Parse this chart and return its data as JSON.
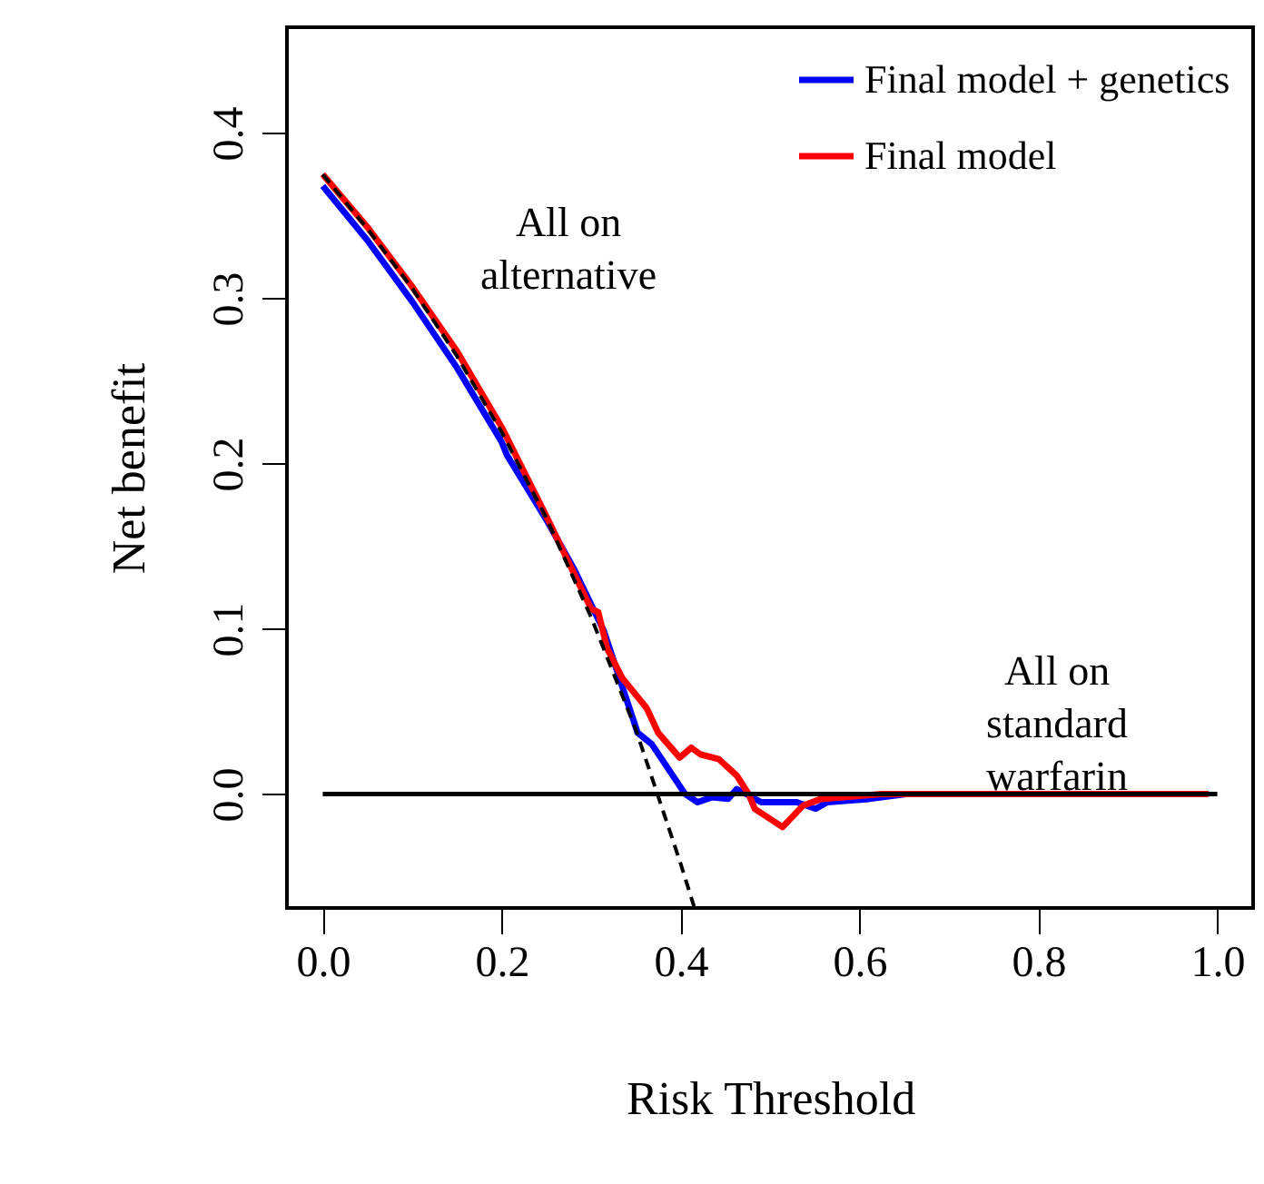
{
  "chart_data": {
    "type": "line",
    "xlabel": "Risk Threshold",
    "ylabel": "Net benefit",
    "xlim": [
      -0.04,
      1.04
    ],
    "ylim": [
      -0.069,
      0.464
    ],
    "xticks": [
      {
        "value": 0,
        "label": "0.0"
      },
      {
        "value": 0.2,
        "label": "0.2"
      },
      {
        "value": 0.4,
        "label": "0.4"
      },
      {
        "value": 0.6,
        "label": "0.6"
      },
      {
        "value": 0.8,
        "label": "0.8"
      },
      {
        "value": 1,
        "label": "1.0"
      }
    ],
    "yticks": [
      {
        "value": 0,
        "label": "0.0"
      },
      {
        "value": 0.1,
        "label": "0.1"
      },
      {
        "value": 0.2,
        "label": "0.2"
      },
      {
        "value": 0.3,
        "label": "0.3"
      },
      {
        "value": 0.4,
        "label": "0.4"
      }
    ],
    "grid": false,
    "legend": "top right",
    "series": [
      {
        "name": "Final model + genetics",
        "color": "#0000ff",
        "line_style": "solid",
        "x": [
          0,
          0.05,
          0.1,
          0.15,
          0.2,
          0.206,
          0.25,
          0.281,
          0.314,
          0.352,
          0.368,
          0.405,
          0.419,
          0.435,
          0.453,
          0.463,
          0.49,
          0.53,
          0.551,
          0.564,
          0.611,
          0.652,
          0.99
        ],
        "values": [
          0.368,
          0.335,
          0.298,
          0.258,
          0.213,
          0.205,
          0.166,
          0.136,
          0.099,
          0.037,
          0.03,
          0,
          -0.005,
          -0.002,
          -0.003,
          0.003,
          -0.005,
          -0.005,
          -0.009,
          -0.005,
          -0.003,
          0,
          0
        ]
      },
      {
        "name": "Final model",
        "color": "#ff0000",
        "line_style": "solid",
        "x": [
          0,
          0.05,
          0.1,
          0.15,
          0.2,
          0.25,
          0.3,
          0.308,
          0.318,
          0.335,
          0.362,
          0.375,
          0.399,
          0.412,
          0.422,
          0.443,
          0.463,
          0.476,
          0.483,
          0.514,
          0.537,
          0.557,
          0.625,
          0.99
        ],
        "values": [
          0.375,
          0.343,
          0.307,
          0.268,
          0.222,
          0.168,
          0.112,
          0.11,
          0.088,
          0.07,
          0.052,
          0.037,
          0.022,
          0.028,
          0.024,
          0.021,
          0.011,
          0,
          -0.009,
          -0.02,
          -0.007,
          -0.003,
          0,
          0
        ]
      },
      {
        "color": "#000000",
        "line_style": "solid",
        "x": [
          0,
          1
        ],
        "values": [
          0,
          0
        ]
      },
      {
        "color": "#000000",
        "line_style": "dashed",
        "x": [
          0,
          0.05,
          0.1,
          0.15,
          0.2,
          0.25,
          0.3,
          0.35,
          0.4,
          0.415
        ],
        "values": [
          0.375,
          0.342,
          0.306,
          0.265,
          0.219,
          0.167,
          0.107,
          0.039,
          -0.042,
          -0.068
        ]
      }
    ],
    "annotations": [
      "All on\nalternative",
      "All on\nstandard\nwarfarin"
    ]
  }
}
